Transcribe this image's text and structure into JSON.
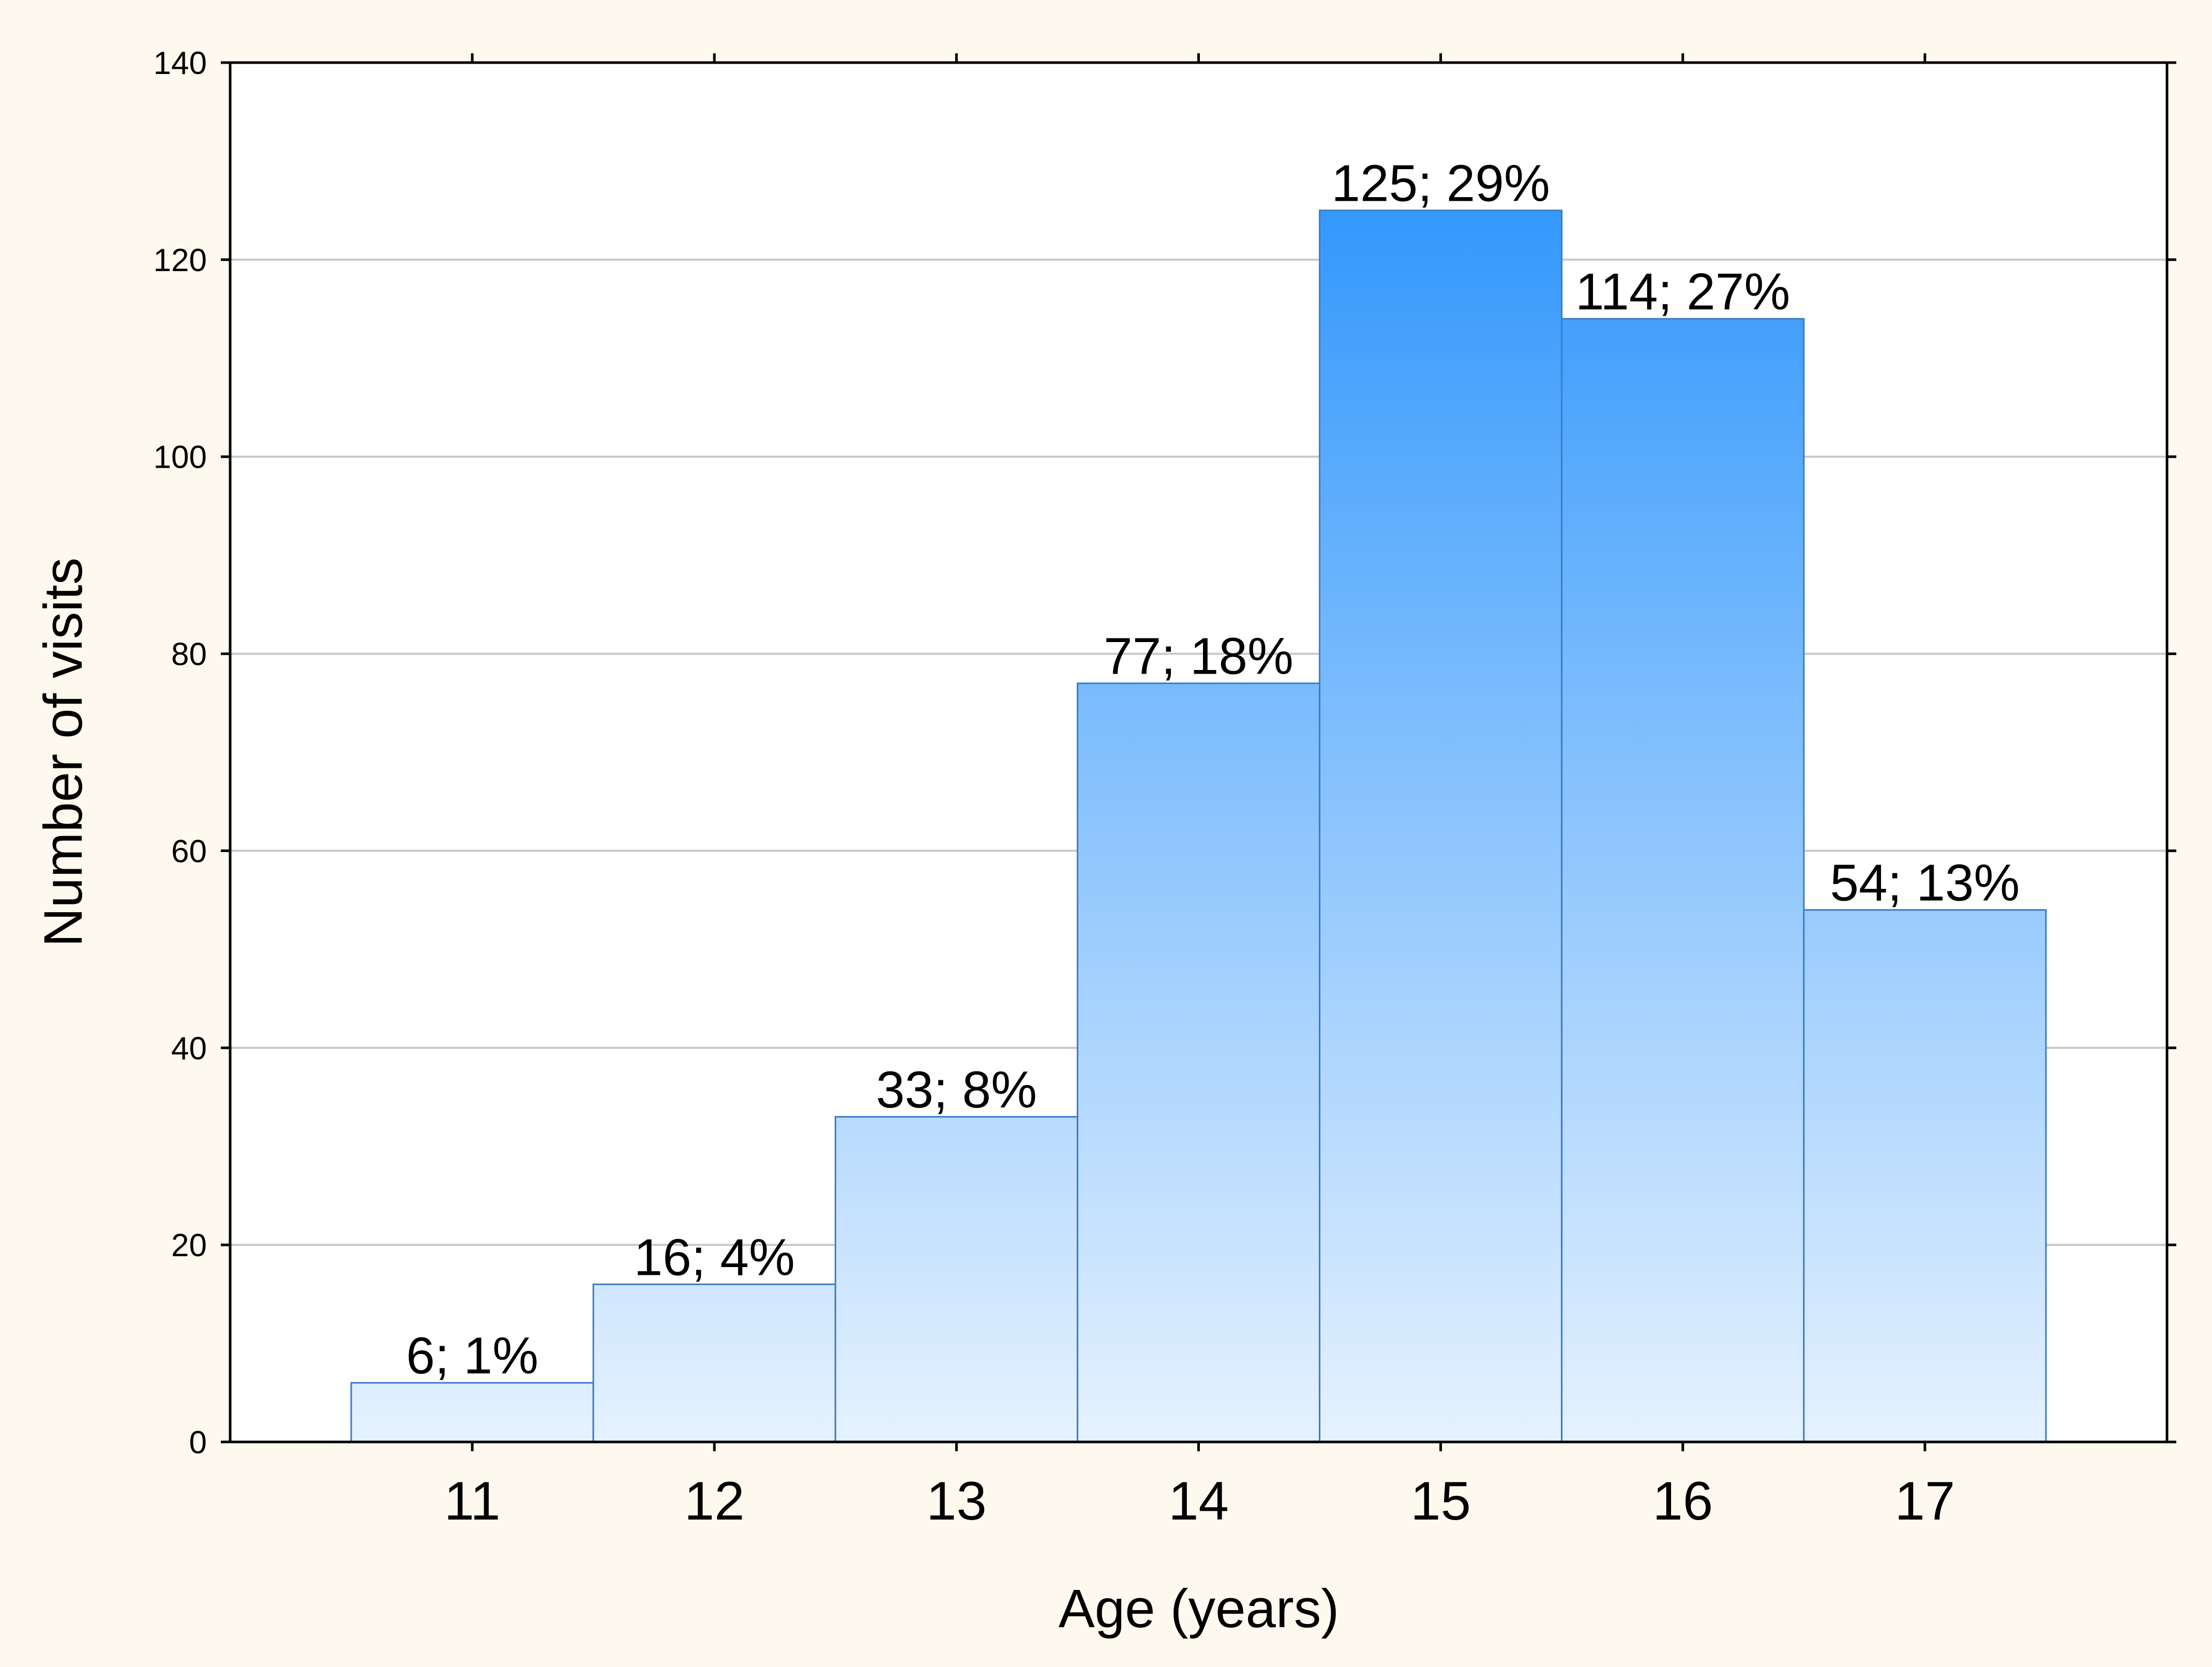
{
  "colors": {
    "page_background": "#fdf9ee",
    "plot_background": "#ffffff",
    "bar_top_strong": "#1e8dfc",
    "bar_bottom_light": "#e6f2fe",
    "bar_edge": "#3d7cc4",
    "gridline": "#c8c8c8",
    "axis": "#000000"
  },
  "chart_data": {
    "type": "bar",
    "title": "",
    "xlabel": "Age (years)",
    "ylabel": "Number of visits",
    "categories": [
      "11",
      "12",
      "13",
      "14",
      "15",
      "16",
      "17"
    ],
    "values": [
      6,
      16,
      33,
      77,
      125,
      114,
      54
    ],
    "data_labels": [
      "6; 1%",
      "16; 4%",
      "33; 8%",
      "77; 18%",
      "125; 29%",
      "114; 27%",
      "54; 13%"
    ],
    "ylim": [
      0,
      140
    ],
    "yticks": [
      0,
      20,
      40,
      60,
      80,
      100,
      120,
      140
    ],
    "ytick_labels": [
      "0",
      "20",
      "40",
      "60",
      "80",
      "100",
      "120",
      "140"
    ],
    "grid": "horizontal",
    "fill": "vertical gradient, stronger blue toward the top of the scale"
  }
}
